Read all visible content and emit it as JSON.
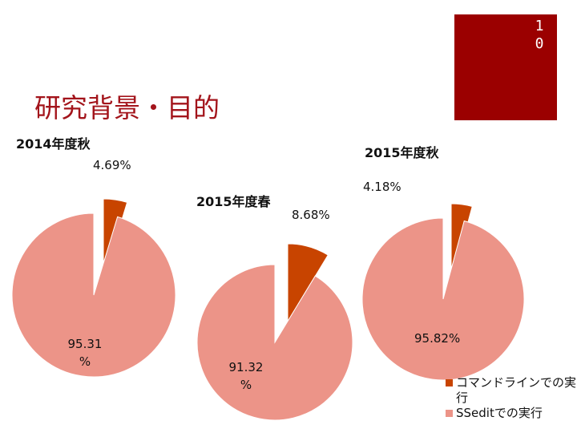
{
  "slide": {
    "number": "10",
    "title": "研究背景・目的"
  },
  "colors": {
    "accent_box": "#9b0000",
    "title": "#a3141b",
    "cmd": "#c84400",
    "ssedit": "#ec9488"
  },
  "legend": [
    {
      "label": "コマンドラインでの実行",
      "color": "#c84400"
    },
    {
      "label": "SSeditでの実行",
      "color": "#ec9488"
    }
  ],
  "labels": {
    "c1_cmd": "4.69%",
    "c1_ss": "95.31 %",
    "c2_cmd": "8.68%",
    "c2_ss": "91.32 %",
    "c3_cmd": "4.18%",
    "c3_ss": "95.82%"
  },
  "chart_data": [
    {
      "type": "pie",
      "title": "2014年度秋",
      "slices": [
        {
          "name": "コマンドラインでの実行",
          "value": 4.69
        },
        {
          "name": "SSeditでの実行",
          "value": 95.31
        }
      ]
    },
    {
      "type": "pie",
      "title": "2015年度春",
      "slices": [
        {
          "name": "コマンドラインでの実行",
          "value": 8.68
        },
        {
          "name": "SSeditでの実行",
          "value": 91.32
        }
      ]
    },
    {
      "type": "pie",
      "title": "2015年度秋",
      "slices": [
        {
          "name": "コマンドラインでの実行",
          "value": 4.18
        },
        {
          "name": "SSeditでの実行",
          "value": 95.82
        }
      ]
    }
  ]
}
